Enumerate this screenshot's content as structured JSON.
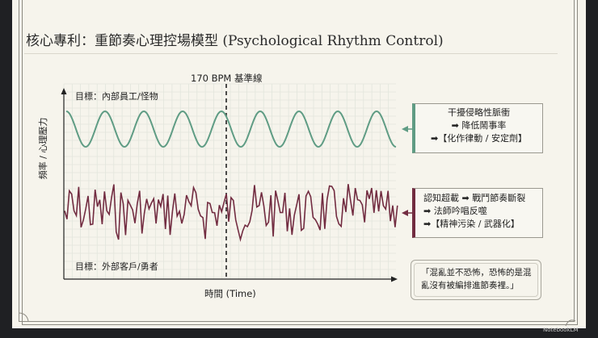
{
  "title": "核心專利：重節奏心理控場模型 (Psychological Rhythm Control)",
  "chart": {
    "baseline_label": "170 BPM 基準線",
    "y_axis_label": "頻率 / 心理壓力",
    "x_axis_label": "時間 (Time)",
    "upper_series_label": "目標：內部員工/怪物",
    "lower_series_label": "目標：外部客戶/勇者",
    "upper_wave": "regular sine",
    "lower_wave": "chaotic jagged"
  },
  "box_internal": {
    "lines": [
      "干擾侵略性脈衝",
      "➡ 降低鬧事率",
      "➡【化作律動 / 安定劑】"
    ]
  },
  "box_external": {
    "lines": [
      "認知超載 ➡ 戰鬥節奏斷裂",
      "➡ 法師吟唱反噬",
      "➡【精神污染 / 武器化】"
    ]
  },
  "quote": "「混亂並不恐怖，恐怖的是混亂沒有被編排進節奏裡。」",
  "brand": "NotebookLM",
  "colors": {
    "green": "#5f9c84",
    "maroon": "#722c41",
    "background": "#f6f4ec"
  }
}
